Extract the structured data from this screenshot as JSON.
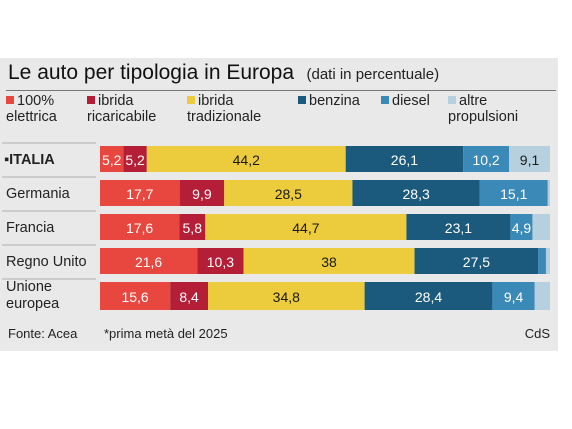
{
  "title": "Le auto per tipologia in Europa",
  "subtitle": "(dati in percentuale)",
  "footer": {
    "source": "Fonte: Acea",
    "note": "*prima metà del 2025",
    "credit": "CdS"
  },
  "chart_data": {
    "type": "bar",
    "orientation": "horizontal",
    "stacked": true,
    "unit": "%",
    "categories": [
      "ITALIA",
      "Germania",
      "Francia",
      "Regno Unito",
      "Unione europea"
    ],
    "category_lines": [
      [
        "ITALIA"
      ],
      [
        "Germania"
      ],
      [
        "Francia"
      ],
      [
        "Regno Unito"
      ],
      [
        "Unione",
        "europea"
      ]
    ],
    "series": [
      {
        "name": "100% elettrica",
        "legend_lines": [
          "100%",
          "elettrica"
        ],
        "color": "#e8473f",
        "text_color": "#ffffff",
        "values": [
          5.2,
          17.7,
          17.6,
          21.6,
          15.6
        ]
      },
      {
        "name": "ibrida ricaricabile",
        "legend_lines": [
          "ibrida",
          "ricaricabile"
        ],
        "color": "#b41f37",
        "text_color": "#ffffff",
        "values": [
          5.2,
          9.9,
          5.8,
          10.3,
          8.4
        ]
      },
      {
        "name": "ibrida tradizionale",
        "legend_lines": [
          "ibrida",
          "tradizionale"
        ],
        "color": "#eccb3d",
        "text_color": "#1a1a1a",
        "values": [
          44.2,
          28.5,
          44.7,
          38,
          34.8
        ]
      },
      {
        "name": "benzina",
        "legend_lines": [
          "benzina"
        ],
        "color": "#1b5a7d",
        "text_color": "#ffffff",
        "values": [
          26.1,
          28.3,
          23.1,
          27.5,
          28.4
        ]
      },
      {
        "name": "diesel",
        "legend_lines": [
          "diesel"
        ],
        "color": "#3a89b7",
        "text_color": "#ffffff",
        "values": [
          10.2,
          15.1,
          4.9,
          1.7,
          9.4
        ]
      },
      {
        "name": "altre propulsioni",
        "legend_lines": [
          "altre",
          "propulsioni"
        ],
        "color": "#b6d0df",
        "text_color": "#1a1a1a",
        "values": [
          9.1,
          0.5,
          3.9,
          0.9,
          3.4
        ]
      }
    ],
    "labels": [
      [
        "5,2",
        "5,2",
        "44,2",
        "26,1",
        "10,2",
        "9,1"
      ],
      [
        "17,7",
        "9,9",
        "28,5",
        "28,3",
        "15,1",
        ""
      ],
      [
        "17,6",
        "5,8",
        "44,7",
        "23,1",
        "4,9",
        ""
      ],
      [
        "21,6",
        "10,3",
        "38",
        "27,5",
        "",
        ""
      ],
      [
        "15,6",
        "8,4",
        "34,8",
        "28,4",
        "9,4",
        ""
      ]
    ],
    "xlim": [
      0,
      100
    ]
  }
}
